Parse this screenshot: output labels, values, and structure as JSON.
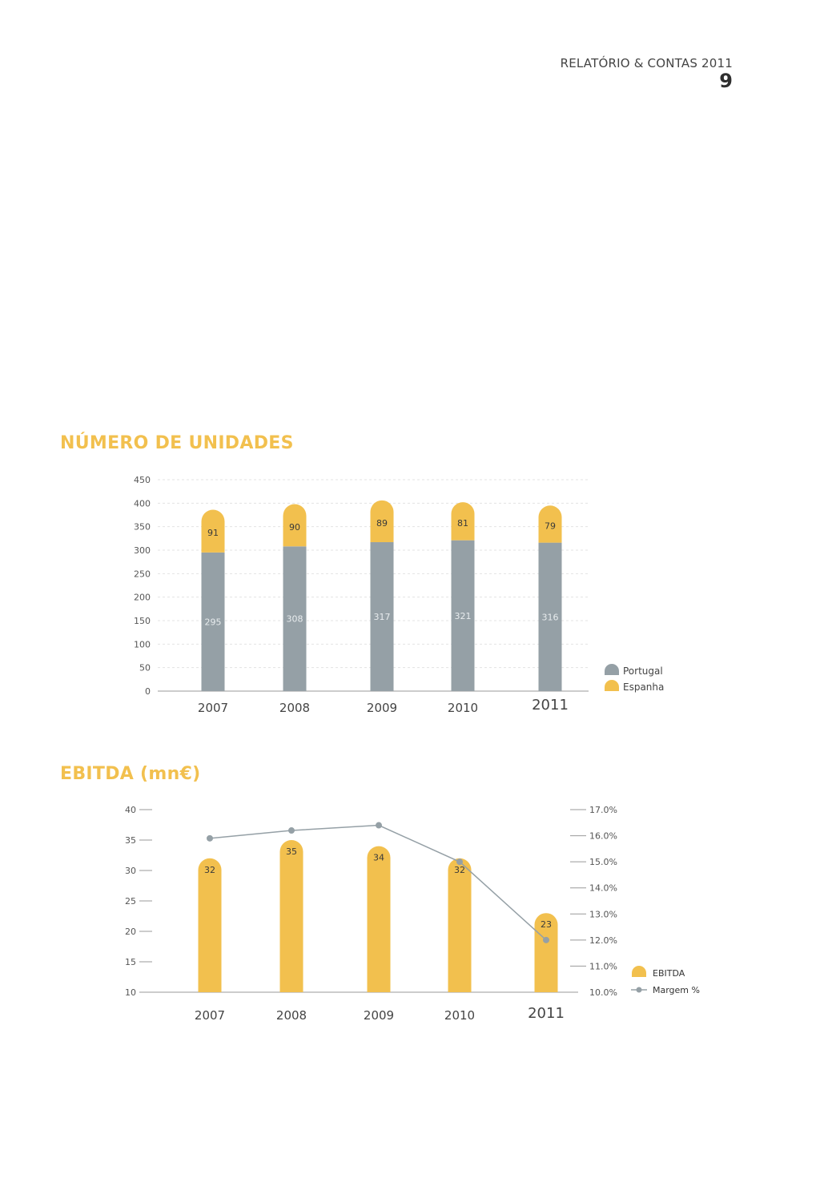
{
  "header": {
    "report_title": "RELATÓRIO & CONTAS 2011",
    "page_number": "9"
  },
  "colors": {
    "accent": "#f2c04e",
    "gray": "#95a0a6",
    "axis": "#999999"
  },
  "chart_data": [
    {
      "type": "bar",
      "stacked": true,
      "title": "NÚMERO DE UNIDADES",
      "categories": [
        "2007",
        "2008",
        "2009",
        "2010",
        "2011"
      ],
      "series": [
        {
          "name": "Portugal",
          "values": [
            295,
            308,
            317,
            321,
            316
          ],
          "color": "#95a0a6"
        },
        {
          "name": "Espanha",
          "values": [
            91,
            90,
            89,
            81,
            79
          ],
          "color": "#f2c04e"
        }
      ],
      "yticks": [
        "0",
        "50",
        "100",
        "150",
        "200",
        "250",
        "300",
        "350",
        "400",
        "450"
      ],
      "ylim": [
        0,
        450
      ],
      "grid": true,
      "legend": "right"
    },
    {
      "type": "bar",
      "title": "EBITDA (mn€)",
      "categories": [
        "2007",
        "2008",
        "2009",
        "2010",
        "2011"
      ],
      "series": [
        {
          "name": "EBITDA",
          "type": "bar",
          "values": [
            32,
            35,
            34,
            32,
            23
          ],
          "color": "#f2c04e"
        },
        {
          "name": "Margem %",
          "type": "line",
          "axis": "right",
          "values": [
            15.9,
            16.2,
            16.4,
            15.0,
            12.0
          ],
          "color": "#95a0a6"
        }
      ],
      "yticks_left": [
        "10",
        "15",
        "20",
        "25",
        "30",
        "35",
        "40"
      ],
      "ylim_left": [
        10,
        40
      ],
      "yticks_right": [
        "10.0%",
        "11.0%",
        "12.0%",
        "13.0%",
        "14.0%",
        "15.0%",
        "16.0%",
        "17.0%"
      ],
      "ylim_right": [
        10,
        17
      ],
      "grid": false,
      "legend": "right"
    }
  ]
}
